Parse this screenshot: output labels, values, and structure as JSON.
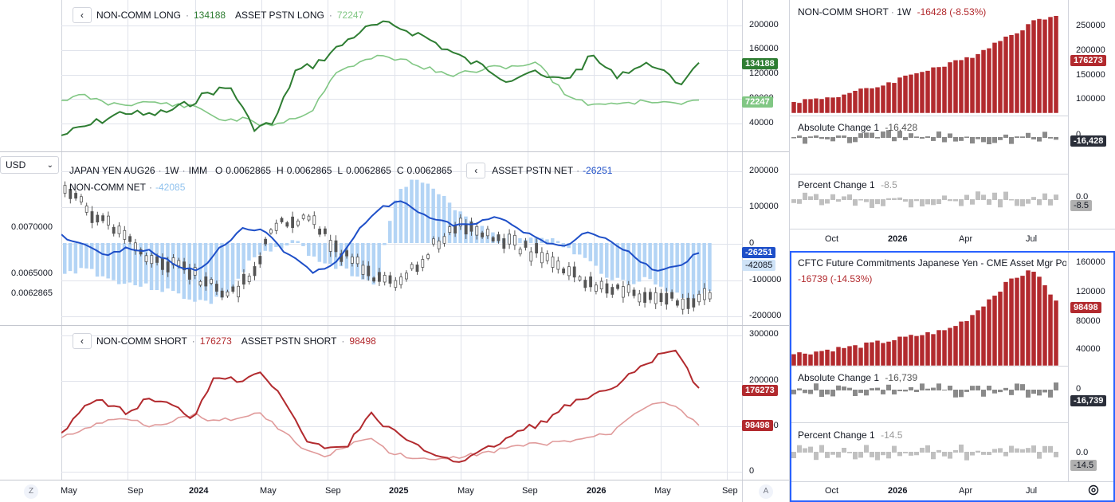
{
  "toolbar": {
    "currency": "USD",
    "currency_caret": "⌄",
    "back": "‹",
    "scale_left": "Z",
    "scale_right": "A",
    "settings_icon": "gear-icon"
  },
  "top_pane": {
    "s1_name": "NON-COMM LONG",
    "s1_value": "134188",
    "s2_name": "ASSET PSTN LONG",
    "s2_value": "72247",
    "axis": [
      "200000",
      "160000",
      "120000",
      "80000",
      "40000"
    ],
    "badge1": "134188",
    "badge2": "72247",
    "colors": {
      "s1": "#2e7d32",
      "s2": "#81c784"
    }
  },
  "mid_pane": {
    "symbol": "JAPAN YEN AUG26",
    "interval": "1W",
    "exchange": "IMM",
    "o_label": "O",
    "o": "0.0062865",
    "h_label": "H",
    "h": "0.0062865",
    "l_label": "L",
    "l": "0.0062865",
    "c_label": "C",
    "c": "0.0062865",
    "asset_name": "ASSET PSTN NET",
    "asset_value": "-26251",
    "noncomm_name": "NON-COMM NET",
    "noncomm_value": "-42085",
    "left_axis": [
      "0.0070000",
      "0.0065000",
      "0.0062865"
    ],
    "right_axis": [
      "200000",
      "100000",
      "0",
      "-100000",
      "-200000"
    ],
    "badge_asset": "-26251",
    "badge_noncomm": "-42085",
    "colors": {
      "asset": "#1e4fc8",
      "noncomm_bars": "#b3d4f5",
      "candles": "#555555"
    }
  },
  "bot_pane": {
    "s1_name": "NON-COMM SHORT",
    "s1_value": "176273",
    "s2_name": "ASSET PSTN SHORT",
    "s2_value": "98498",
    "axis": [
      "300000",
      "200000",
      "100000",
      "0"
    ],
    "badge1": "176273",
    "badge2": "98498",
    "colors": {
      "s1": "#b22a2e",
      "s2": "#e09a9a"
    }
  },
  "main_dates": [
    "May",
    "Sep",
    "2024",
    "May",
    "Sep",
    "2025",
    "May",
    "Sep",
    "2026",
    "May",
    "Sep"
  ],
  "right_top": {
    "title": "NON-COMM SHORT",
    "interval": "1W",
    "change": "-16428 (-8.53%)",
    "axis": [
      "250000",
      "200000",
      "150000",
      "100000"
    ],
    "badge": "176273",
    "abs_title": "Absolute Change 1",
    "abs_value": "-16,428",
    "abs_axis": "0",
    "abs_badge": "-16,428",
    "pct_title": "Percent Change 1",
    "pct_value": "-8.5",
    "pct_axis": "0.0",
    "pct_badge": "-8.5",
    "dates": [
      "Oct",
      "2026",
      "Apr",
      "Jul"
    ]
  },
  "right_bottom": {
    "title": "CFTC Future Commitments Japanese Yen - CME Asset Mgr Po",
    "change": "-16739 (-14.53%)",
    "axis": [
      "160000",
      "120000",
      "80000",
      "40000"
    ],
    "badge": "98498",
    "abs_title": "Absolute Change 1",
    "abs_value": "-16,739",
    "abs_axis": "0",
    "abs_badge": "-16,739",
    "pct_title": "Percent Change 1",
    "pct_value": "-14.5",
    "pct_axis": "0.0",
    "pct_badge": "-14.5",
    "dates": [
      "Oct",
      "2026",
      "Apr",
      "Jul"
    ]
  }
}
